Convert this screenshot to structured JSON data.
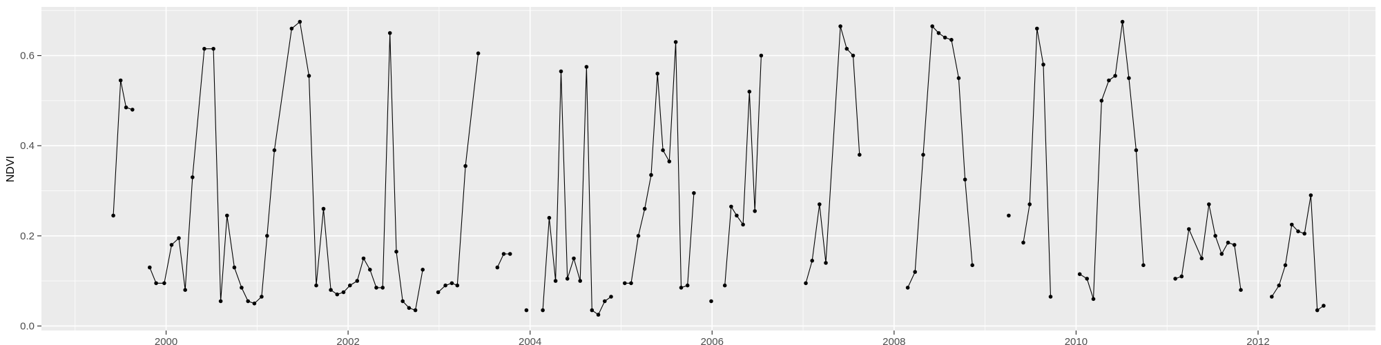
{
  "chart_data": {
    "type": "line",
    "title": "",
    "xlabel": "",
    "ylabel": "NDVI",
    "legend": false,
    "grid": true,
    "xlim": [
      1998.63,
      2013.29
    ],
    "ylim": [
      -0.01,
      0.708
    ],
    "x_ticks_major": [
      2000,
      2002,
      2004,
      2006,
      2008,
      2010,
      2012
    ],
    "x_tick_labels": [
      "2000",
      "2002",
      "2004",
      "2006",
      "2008",
      "2010",
      "2012"
    ],
    "x_ticks_minor": [
      1999,
      2001,
      2003,
      2005,
      2007,
      2009,
      2011,
      2013
    ],
    "y_ticks_major": [
      0.0,
      0.2,
      0.4,
      0.6
    ],
    "y_tick_labels": [
      "0.0",
      "0.2",
      "0.4",
      "0.6"
    ],
    "y_ticks_minor": [
      0.1,
      0.3,
      0.5,
      0.7
    ],
    "style": {
      "plot_bg": "#FFFFFF",
      "panel_bg": "#EBEBEB",
      "grid_major": "#FFFFFF",
      "grid_minor": "#FFFFFF",
      "line_color": "#000000",
      "point_color": "#000000",
      "tick_color": "#333333",
      "tick_label_color": "#4D4D4D"
    },
    "series": [
      {
        "name": "NDVI",
        "marker": "circle",
        "segments": [
          [
            [
              1999.42,
              0.245
            ],
            [
              1999.5,
              0.545
            ],
            [
              1999.56,
              0.485
            ],
            [
              1999.63,
              0.48
            ]
          ],
          [
            [
              1999.82,
              0.13
            ],
            [
              1999.89,
              0.095
            ],
            [
              1999.98,
              0.095
            ],
            [
              2000.06,
              0.18
            ],
            [
              2000.14,
              0.195
            ],
            [
              2000.21,
              0.08
            ],
            [
              2000.29,
              0.33
            ],
            [
              2000.42,
              0.615
            ],
            [
              2000.52,
              0.615
            ],
            [
              2000.6,
              0.055
            ],
            [
              2000.67,
              0.245
            ],
            [
              2000.75,
              0.13
            ],
            [
              2000.83,
              0.085
            ],
            [
              2000.9,
              0.055
            ],
            [
              2000.97,
              0.05
            ],
            [
              2001.05,
              0.065
            ],
            [
              2001.11,
              0.2
            ],
            [
              2001.19,
              0.39
            ],
            [
              2001.38,
              0.66
            ],
            [
              2001.47,
              0.675
            ],
            [
              2001.57,
              0.555
            ],
            [
              2001.65,
              0.09
            ],
            [
              2001.73,
              0.26
            ],
            [
              2001.81,
              0.08
            ],
            [
              2001.88,
              0.07
            ],
            [
              2001.95,
              0.075
            ],
            [
              2002.02,
              0.09
            ],
            [
              2002.1,
              0.1
            ],
            [
              2002.17,
              0.15
            ],
            [
              2002.24,
              0.125
            ],
            [
              2002.31,
              0.085
            ],
            [
              2002.38,
              0.085
            ],
            [
              2002.46,
              0.65
            ],
            [
              2002.53,
              0.165
            ],
            [
              2002.6,
              0.055
            ],
            [
              2002.67,
              0.04
            ],
            [
              2002.74,
              0.035
            ],
            [
              2002.82,
              0.125
            ]
          ],
          [
            [
              2002.99,
              0.075
            ],
            [
              2003.07,
              0.09
            ],
            [
              2003.14,
              0.095
            ],
            [
              2003.2,
              0.09
            ],
            [
              2003.29,
              0.355
            ],
            [
              2003.43,
              0.605
            ]
          ],
          [
            [
              2003.64,
              0.13
            ],
            [
              2003.71,
              0.16
            ],
            [
              2003.78,
              0.16
            ]
          ],
          [
            [
              2003.96,
              0.035
            ]
          ],
          [
            [
              2004.14,
              0.035
            ],
            [
              2004.21,
              0.24
            ],
            [
              2004.28,
              0.1
            ],
            [
              2004.34,
              0.565
            ],
            [
              2004.41,
              0.105
            ],
            [
              2004.48,
              0.15
            ],
            [
              2004.55,
              0.1
            ],
            [
              2004.62,
              0.575
            ],
            [
              2004.68,
              0.035
            ],
            [
              2004.75,
              0.025
            ],
            [
              2004.82,
              0.055
            ],
            [
              2004.89,
              0.065
            ]
          ],
          [
            [
              2005.04,
              0.095
            ],
            [
              2005.11,
              0.095
            ],
            [
              2005.19,
              0.2
            ],
            [
              2005.26,
              0.26
            ],
            [
              2005.33,
              0.335
            ],
            [
              2005.4,
              0.56
            ],
            [
              2005.46,
              0.39
            ],
            [
              2005.53,
              0.365
            ],
            [
              2005.6,
              0.63
            ],
            [
              2005.66,
              0.085
            ],
            [
              2005.73,
              0.09
            ],
            [
              2005.8,
              0.295
            ]
          ],
          [
            [
              2005.99,
              0.055
            ]
          ],
          [
            [
              2006.14,
              0.09
            ],
            [
              2006.21,
              0.265
            ],
            [
              2006.27,
              0.245
            ],
            [
              2006.34,
              0.225
            ],
            [
              2006.41,
              0.52
            ],
            [
              2006.47,
              0.255
            ],
            [
              2006.54,
              0.6
            ]
          ],
          [
            [
              2007.03,
              0.095
            ],
            [
              2007.1,
              0.145
            ],
            [
              2007.18,
              0.27
            ],
            [
              2007.25,
              0.14
            ],
            [
              2007.41,
              0.665
            ],
            [
              2007.48,
              0.615
            ],
            [
              2007.55,
              0.6
            ],
            [
              2007.62,
              0.38
            ]
          ],
          [
            [
              2008.15,
              0.085
            ],
            [
              2008.23,
              0.12
            ],
            [
              2008.32,
              0.38
            ],
            [
              2008.42,
              0.665
            ],
            [
              2008.49,
              0.65
            ],
            [
              2008.56,
              0.64
            ],
            [
              2008.63,
              0.635
            ],
            [
              2008.71,
              0.55
            ],
            [
              2008.78,
              0.325
            ],
            [
              2008.86,
              0.135
            ]
          ],
          [
            [
              2009.26,
              0.245
            ]
          ],
          [
            [
              2009.42,
              0.185
            ],
            [
              2009.49,
              0.27
            ],
            [
              2009.57,
              0.66
            ],
            [
              2009.64,
              0.58
            ],
            [
              2009.72,
              0.065
            ]
          ],
          [
            [
              2010.04,
              0.115
            ],
            [
              2010.12,
              0.105
            ],
            [
              2010.19,
              0.06
            ],
            [
              2010.28,
              0.5
            ],
            [
              2010.36,
              0.545
            ],
            [
              2010.43,
              0.555
            ],
            [
              2010.51,
              0.675
            ],
            [
              2010.58,
              0.55
            ],
            [
              2010.66,
              0.39
            ],
            [
              2010.74,
              0.135
            ]
          ],
          [
            [
              2011.09,
              0.105
            ],
            [
              2011.16,
              0.11
            ],
            [
              2011.24,
              0.215
            ],
            [
              2011.38,
              0.15
            ],
            [
              2011.46,
              0.27
            ],
            [
              2011.53,
              0.2
            ],
            [
              2011.6,
              0.16
            ],
            [
              2011.67,
              0.185
            ],
            [
              2011.74,
              0.18
            ],
            [
              2011.81,
              0.08
            ]
          ],
          [
            [
              2012.15,
              0.065
            ],
            [
              2012.23,
              0.09
            ],
            [
              2012.3,
              0.135
            ],
            [
              2012.37,
              0.225
            ],
            [
              2012.44,
              0.21
            ],
            [
              2012.51,
              0.205
            ],
            [
              2012.58,
              0.29
            ],
            [
              2012.65,
              0.035
            ],
            [
              2012.72,
              0.045
            ]
          ]
        ]
      }
    ]
  }
}
